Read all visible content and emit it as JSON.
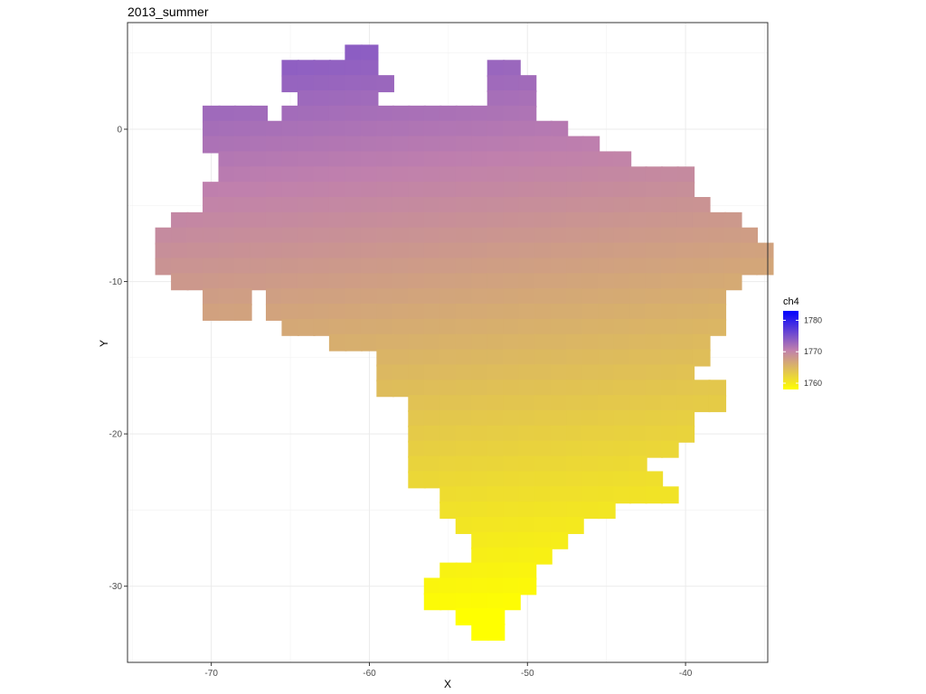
{
  "chart_data": {
    "type": "heatmap",
    "title": "2013_summer",
    "xlabel": "X",
    "ylabel": "Y",
    "xlim": [
      -75.3,
      -34.8
    ],
    "ylim": [
      -35,
      7
    ],
    "x_ticks": [
      -70,
      -60,
      -50,
      -40
    ],
    "x_tick_labels": [
      "-70",
      "-60",
      "-50",
      "-40"
    ],
    "y_ticks": [
      0,
      -10,
      -20,
      -30
    ],
    "y_tick_labels": [
      "0",
      "-10",
      "-20",
      "-30"
    ],
    "grid": true,
    "cell_width": 1.1,
    "cell_height": 1.1,
    "legend": {
      "title": "ch4",
      "position": "right",
      "range": [
        1758,
        1783
      ],
      "low_color": "#ffff00",
      "mid_color": "#c080ad",
      "high_color": "#0000ff",
      "ticks": [
        1760,
        1770,
        1780
      ],
      "tick_labels": [
        "1760",
        "1770",
        "1780"
      ]
    },
    "rows": [
      {
        "y": 5.0,
        "segments": [
          [
            -61.0,
            -60.0
          ]
        ]
      },
      {
        "y": 4.0,
        "segments": [
          [
            -65.0,
            -64.0
          ],
          [
            -63.0,
            -60.0
          ],
          [
            -52.0,
            -51.0
          ]
        ]
      },
      {
        "y": 3.0,
        "segments": [
          [
            -65.0,
            -64.0
          ],
          [
            -64.0,
            -59.0
          ],
          [
            -52.0,
            -50.0
          ]
        ]
      },
      {
        "y": 2.0,
        "segments": [
          [
            -64.0,
            -60.0
          ],
          [
            -52.0,
            -50.0
          ]
        ]
      },
      {
        "y": 1.0,
        "segments": [
          [
            -70.0,
            -67.0
          ],
          [
            -65.0,
            -59.0
          ],
          [
            -58.0,
            -50.0
          ]
        ]
      },
      {
        "y": 0.0,
        "segments": [
          [
            -70.0,
            -48.0
          ]
        ]
      },
      {
        "y": -1.0,
        "segments": [
          [
            -70.0,
            -46.0
          ]
        ]
      },
      {
        "y": -2.0,
        "segments": [
          [
            -69.0,
            -44.0
          ]
        ]
      },
      {
        "y": -3.0,
        "segments": [
          [
            -69.0,
            -40.0
          ]
        ]
      },
      {
        "y": -4.0,
        "segments": [
          [
            -70.0,
            -40.0
          ]
        ]
      },
      {
        "y": -5.0,
        "segments": [
          [
            -70.0,
            -39.0
          ]
        ]
      },
      {
        "y": -6.0,
        "segments": [
          [
            -72.0,
            -37.0
          ]
        ]
      },
      {
        "y": -7.0,
        "segments": [
          [
            -73.0,
            -36.0
          ]
        ]
      },
      {
        "y": -8.0,
        "segments": [
          [
            -73.0,
            -35.0
          ]
        ]
      },
      {
        "y": -9.0,
        "segments": [
          [
            -73.0,
            -35.0
          ]
        ]
      },
      {
        "y": -10.0,
        "segments": [
          [
            -72.0,
            -37.0
          ]
        ]
      },
      {
        "y": -11.0,
        "segments": [
          [
            -70.0,
            -68.0
          ],
          [
            -66.0,
            -38.0
          ]
        ]
      },
      {
        "y": -12.0,
        "segments": [
          [
            -70.0,
            -68.0
          ],
          [
            -66.0,
            -38.0
          ]
        ]
      },
      {
        "y": -13.0,
        "segments": [
          [
            -65.0,
            -38.0
          ]
        ]
      },
      {
        "y": -14.0,
        "segments": [
          [
            -62.0,
            -39.0
          ]
        ]
      },
      {
        "y": -15.0,
        "segments": [
          [
            -59.0,
            -39.0
          ]
        ]
      },
      {
        "y": -16.0,
        "segments": [
          [
            -59.0,
            -40.0
          ]
        ]
      },
      {
        "y": -17.0,
        "segments": [
          [
            -59.0,
            -38.0
          ]
        ]
      },
      {
        "y": -18.0,
        "segments": [
          [
            -57.0,
            -38.0
          ]
        ]
      },
      {
        "y": -19.0,
        "segments": [
          [
            -57.0,
            -40.0
          ]
        ]
      },
      {
        "y": -20.0,
        "segments": [
          [
            -57.0,
            -40.0
          ]
        ]
      },
      {
        "y": -21.0,
        "segments": [
          [
            -57.0,
            -41.0
          ]
        ]
      },
      {
        "y": -22.0,
        "segments": [
          [
            -57.0,
            -43.0
          ]
        ]
      },
      {
        "y": -23.0,
        "segments": [
          [
            -57.0,
            -42.0
          ]
        ]
      },
      {
        "y": -24.0,
        "segments": [
          [
            -55.0,
            -41.0
          ]
        ]
      },
      {
        "y": -25.0,
        "segments": [
          [
            -55.0,
            -45.0
          ]
        ]
      },
      {
        "y": -26.0,
        "segments": [
          [
            -54.0,
            -47.0
          ]
        ]
      },
      {
        "y": -27.0,
        "segments": [
          [
            -53.0,
            -48.0
          ]
        ]
      },
      {
        "y": -28.0,
        "segments": [
          [
            -53.0,
            -49.0
          ]
        ]
      },
      {
        "y": -29.0,
        "segments": [
          [
            -55.0,
            -50.0
          ]
        ]
      },
      {
        "y": -30.0,
        "segments": [
          [
            -56.0,
            -50.0
          ]
        ]
      },
      {
        "y": -31.0,
        "segments": [
          [
            -56.0,
            -51.0
          ]
        ]
      },
      {
        "y": -32.0,
        "segments": [
          [
            -54.0,
            -52.0
          ]
        ]
      },
      {
        "y": -33.0,
        "segments": [
          [
            -53.0,
            -52.0
          ]
        ]
      }
    ],
    "value_model": {
      "description_free": true,
      "base": 1771.5,
      "coef_lat": 0.42,
      "coef_lon": -0.05,
      "min": 1758,
      "max": 1783
    }
  }
}
